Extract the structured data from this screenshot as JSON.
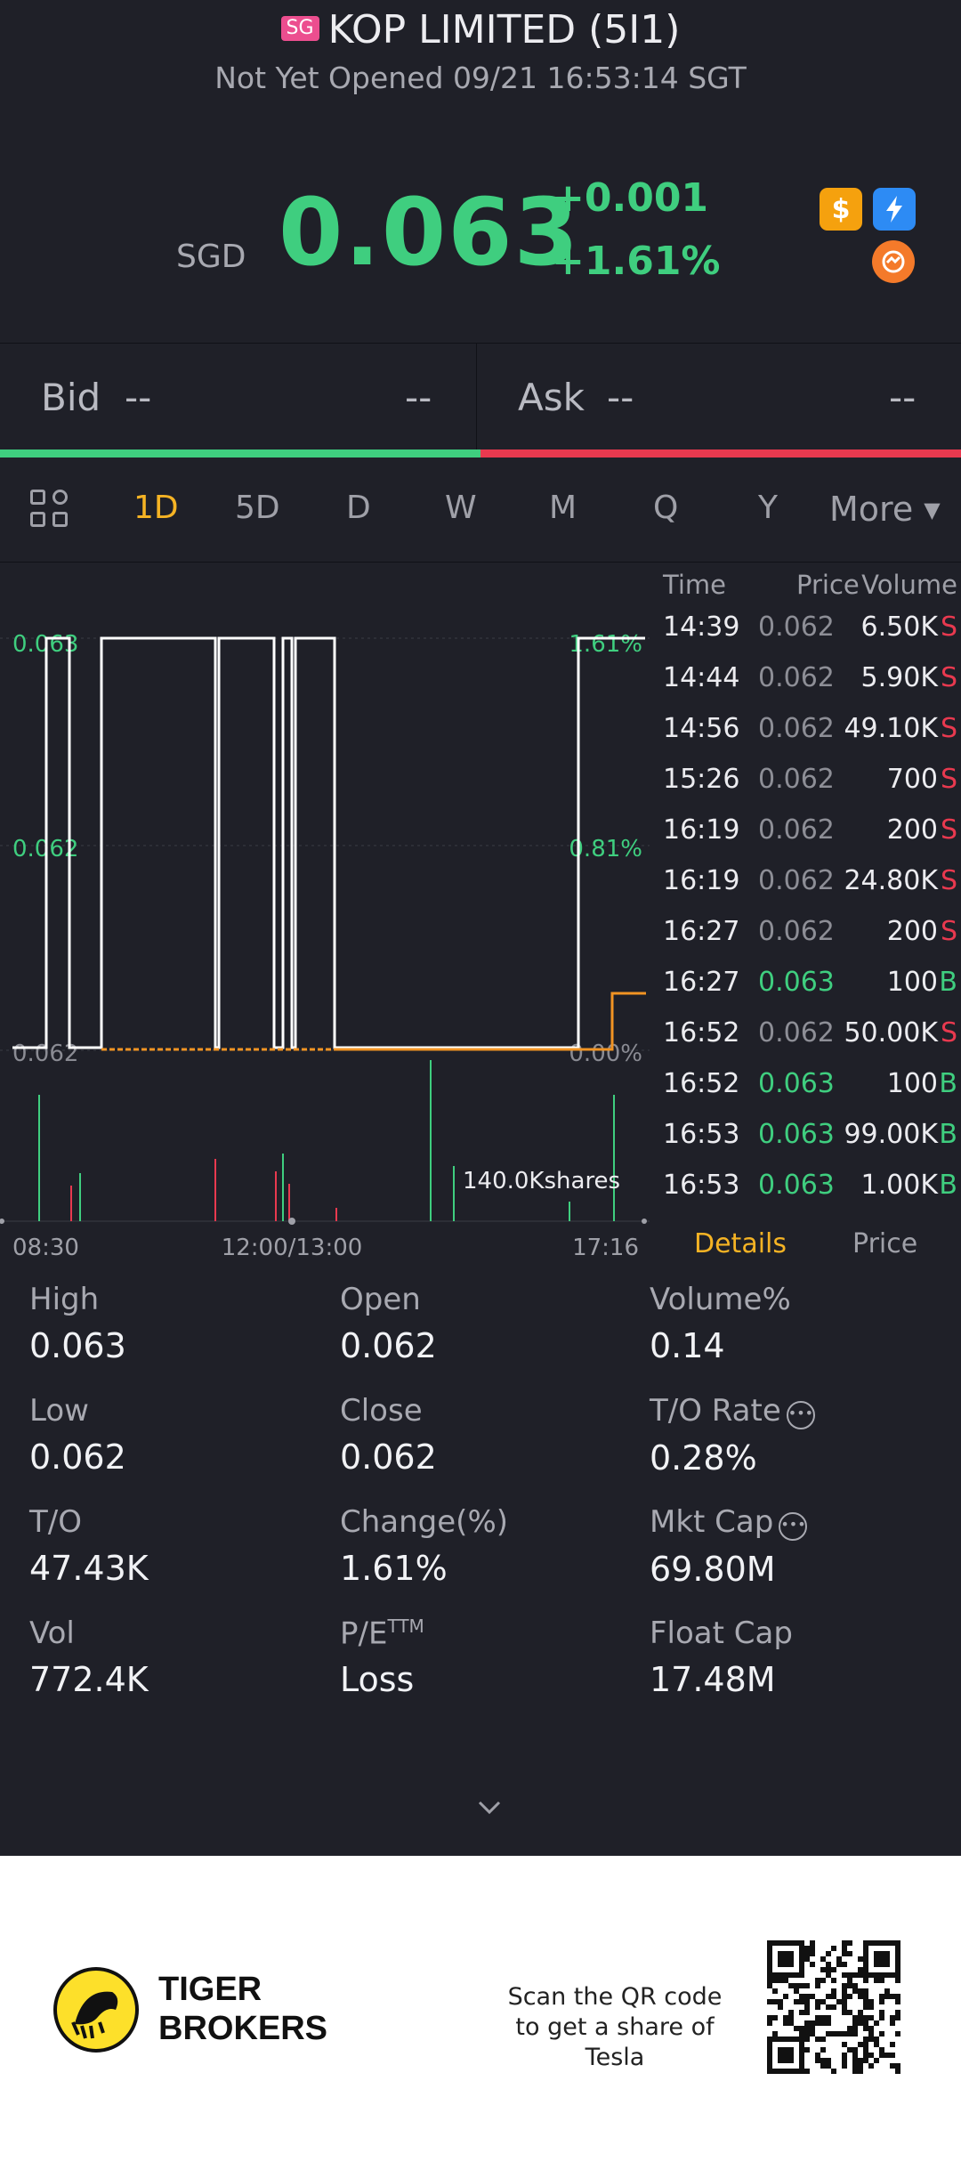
{
  "header": {
    "market_badge": "SG",
    "title": "KOP LIMITED (5I1)",
    "status": "Not Yet Opened 09/21 16:53:14 SGT",
    "currency": "SGD",
    "price": "0.063",
    "change_abs": "+0.001",
    "change_pct": "+1.61%",
    "icons": [
      "dollar-icon",
      "flash-icon",
      "swap-icon"
    ],
    "accent_up": "#3fce7f",
    "accent_down": "#e8394f"
  },
  "bid_ask": {
    "bid_label": "Bid",
    "bid_price": "--",
    "bid_size": "--",
    "ask_label": "Ask",
    "ask_price": "--",
    "ask_size": "--"
  },
  "tabs": [
    "1D",
    "5D",
    "D",
    "W",
    "M",
    "Q",
    "Y"
  ],
  "tabs_more": "More",
  "active_tab": "1D",
  "chart": {
    "y_left": [
      "0.063",
      "0.062",
      "0.062"
    ],
    "y_right": [
      "1.61%",
      "0.81%",
      "0.00%"
    ],
    "x_labels": [
      "08:30",
      "12:00/13:00",
      "17:16"
    ],
    "volume_label": "140.0Kshares"
  },
  "chart_data": {
    "type": "line",
    "x": [
      "08:30",
      "12:00/13:00",
      "17:16"
    ],
    "series": [],
    "yticks_left": [
      "0.063",
      "0.062",
      "0.062"
    ],
    "yticks_right": [
      "1.61%",
      "0.81%",
      "0.00%"
    ],
    "volume_max_label": "140.0Kshares"
  },
  "trades": {
    "headers": {
      "time": "Time",
      "price": "Price",
      "volume": "Volume"
    },
    "rows": [
      {
        "time": "14:39",
        "price": "0.062",
        "volume": "6.50K",
        "side": "S"
      },
      {
        "time": "14:44",
        "price": "0.062",
        "volume": "5.90K",
        "side": "S"
      },
      {
        "time": "14:56",
        "price": "0.062",
        "volume": "49.10K",
        "side": "S"
      },
      {
        "time": "15:26",
        "price": "0.062",
        "volume": "700",
        "side": "S"
      },
      {
        "time": "16:19",
        "price": "0.062",
        "volume": "200",
        "side": "S"
      },
      {
        "time": "16:19",
        "price": "0.062",
        "volume": "24.80K",
        "side": "S"
      },
      {
        "time": "16:27",
        "price": "0.062",
        "volume": "200",
        "side": "S"
      },
      {
        "time": "16:27",
        "price": "0.063",
        "volume": "100",
        "side": "B"
      },
      {
        "time": "16:52",
        "price": "0.062",
        "volume": "50.00K",
        "side": "S"
      },
      {
        "time": "16:52",
        "price": "0.063",
        "volume": "100",
        "side": "B"
      },
      {
        "time": "16:53",
        "price": "0.063",
        "volume": "99.00K",
        "side": "B"
      },
      {
        "time": "16:53",
        "price": "0.063",
        "volume": "1.00K",
        "side": "B"
      }
    ],
    "footer_details": "Details",
    "footer_price": "Price"
  },
  "stats": [
    {
      "label": "High",
      "value": "0.063"
    },
    {
      "label": "Open",
      "value": "0.062"
    },
    {
      "label": "Volume%",
      "value": "0.14"
    },
    {
      "label": "Low",
      "value": "0.062"
    },
    {
      "label": "Close",
      "value": "0.062"
    },
    {
      "label": "T/O Rate",
      "value": "0.28%"
    },
    {
      "label": "T/O",
      "value": "47.43K"
    },
    {
      "label": "Change(%)",
      "value": "1.61%"
    },
    {
      "label": "Mkt Cap",
      "value": "69.80M"
    },
    {
      "label": "Vol",
      "value": "772.4K"
    },
    {
      "label": "P/E",
      "label_sup": "TTM",
      "value": "Loss"
    },
    {
      "label": "Float Cap",
      "value": "17.48M"
    }
  ],
  "footer": {
    "brand_line1": "TIGER",
    "brand_line2": "BROKERS",
    "scan_text": "Scan the QR code to get a share of Tesla"
  }
}
